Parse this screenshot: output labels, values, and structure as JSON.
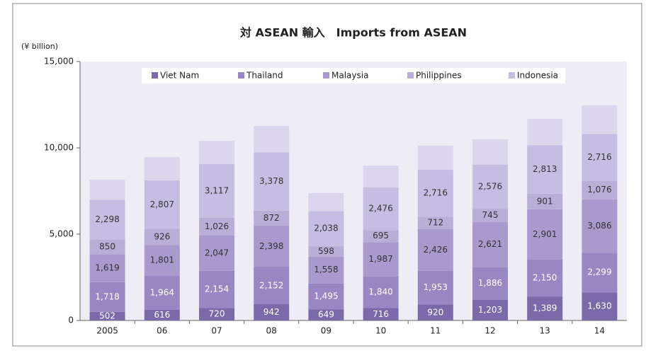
{
  "chart_data": {
    "type": "stacked_bar",
    "title": "対 ASEAN 輸入　Imports from ASEAN",
    "ylabel": "(¥ billion)",
    "categories": [
      "2005",
      "06",
      "07",
      "08",
      "09",
      "10",
      "11",
      "12",
      "13",
      "14"
    ],
    "ylim": [
      0,
      15000
    ],
    "yticks": [
      0,
      {
        "value": 5000,
        "label": "5,000"
      },
      {
        "value": 10000,
        "label": "10,000"
      },
      {
        "value": 15000,
        "label": "15,000"
      }
    ],
    "series": [
      {
        "name": "Viet Nam",
        "color": "#7b6aaa",
        "label_color": "#ffffff",
        "values": [
          502,
          616,
          720,
          942,
          649,
          716,
          920,
          1203,
          1389,
          1630
        ],
        "value_labels": [
          "502",
          "616",
          "720",
          "942",
          "649",
          "716",
          "920",
          "1,203",
          "1,389",
          "1,630"
        ]
      },
      {
        "name": "Thailand",
        "color": "#9887c3",
        "label_color": "#ffffff",
        "values": [
          1718,
          1964,
          2154,
          2152,
          1495,
          1840,
          1953,
          1886,
          2150,
          2299
        ],
        "value_labels": [
          "1,718",
          "1,964",
          "2,154",
          "2,152",
          "1,495",
          "1,840",
          "1,953",
          "1,886",
          "2,150",
          "2,299"
        ]
      },
      {
        "name": "Malaysia",
        "color": "#a99acd",
        "label_color": "#333333",
        "values": [
          1619,
          1801,
          2047,
          2398,
          1558,
          1987,
          2426,
          2621,
          2901,
          3086
        ],
        "value_labels": [
          "1,619",
          "1,801",
          "2,047",
          "2,398",
          "1,558",
          "1,987",
          "2,426",
          "2,621",
          "2,901",
          "3,086"
        ]
      },
      {
        "name": "Philippines",
        "color": "#b8aed8",
        "label_color": "#333333",
        "values": [
          850,
          926,
          1026,
          872,
          598,
          695,
          712,
          745,
          901,
          1076
        ],
        "value_labels": [
          "850",
          "926",
          "1,026",
          "872",
          "598",
          "695",
          "712",
          "745",
          "901",
          "1,076"
        ]
      },
      {
        "name": "Indonesia",
        "color": "#c6bde2",
        "label_color": "#333333",
        "values": [
          2298,
          2807,
          3117,
          3378,
          2038,
          2476,
          2716,
          2576,
          2813,
          2716
        ],
        "value_labels": [
          "2,298",
          "2,807",
          "3,117",
          "3,378",
          "2,038",
          "2,476",
          "2,716",
          "2,576",
          "2,813",
          "2,716"
        ]
      },
      {
        "color": "#dcd6ec",
        "values": [
          1170,
          1350,
          1350,
          1530,
          1040,
          1260,
          1400,
          1460,
          1530,
          1650
        ]
      }
    ]
  }
}
